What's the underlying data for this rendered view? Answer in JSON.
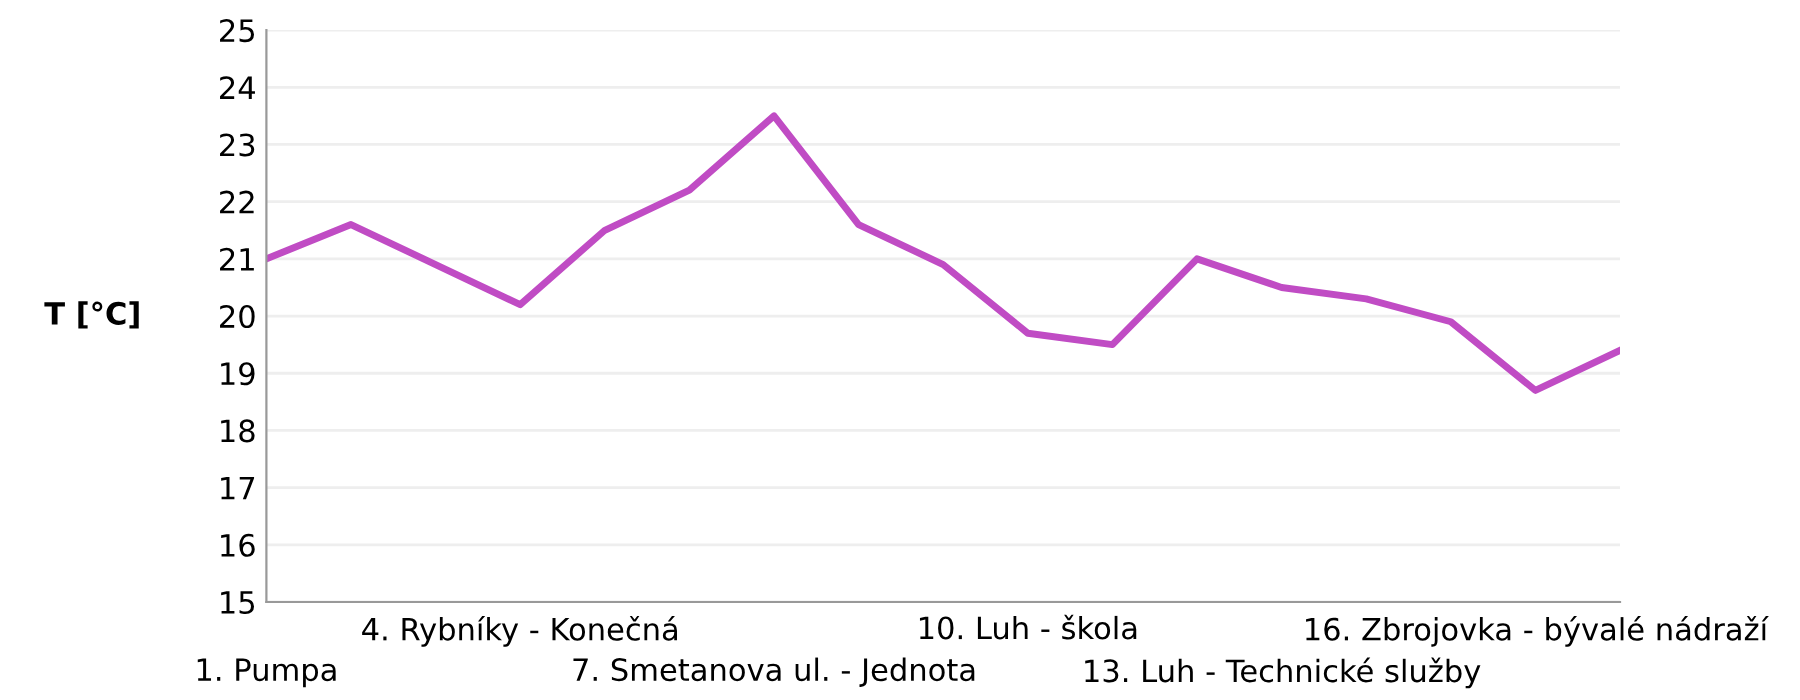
{
  "chart_data": {
    "type": "line",
    "ylabel": "T [°C]",
    "categories": [
      "1. Pumpa",
      null,
      null,
      "4. Rybníky - Konečná",
      null,
      null,
      "7. Smetanova ul. - Jednota",
      null,
      null,
      "10. Luh - škola",
      null,
      null,
      "13. Luh - Technické služby",
      null,
      null,
      "16. Zbrojovka - bývalé nádraží",
      null
    ],
    "series": [
      {
        "color": "#c04cc4",
        "values": [
          21.0,
          21.6,
          20.9,
          20.2,
          21.5,
          22.2,
          23.5,
          21.6,
          20.9,
          19.7,
          19.5,
          21.0,
          20.5,
          20.3,
          19.9,
          18.7,
          19.4
        ]
      }
    ],
    "ylim": [
      15,
      25
    ],
    "yticks": [
      15,
      16,
      17,
      18,
      19,
      20,
      21,
      22,
      23,
      24,
      25
    ],
    "grid": "y",
    "legend": false,
    "marker": "none",
    "line_style": "solid"
  }
}
